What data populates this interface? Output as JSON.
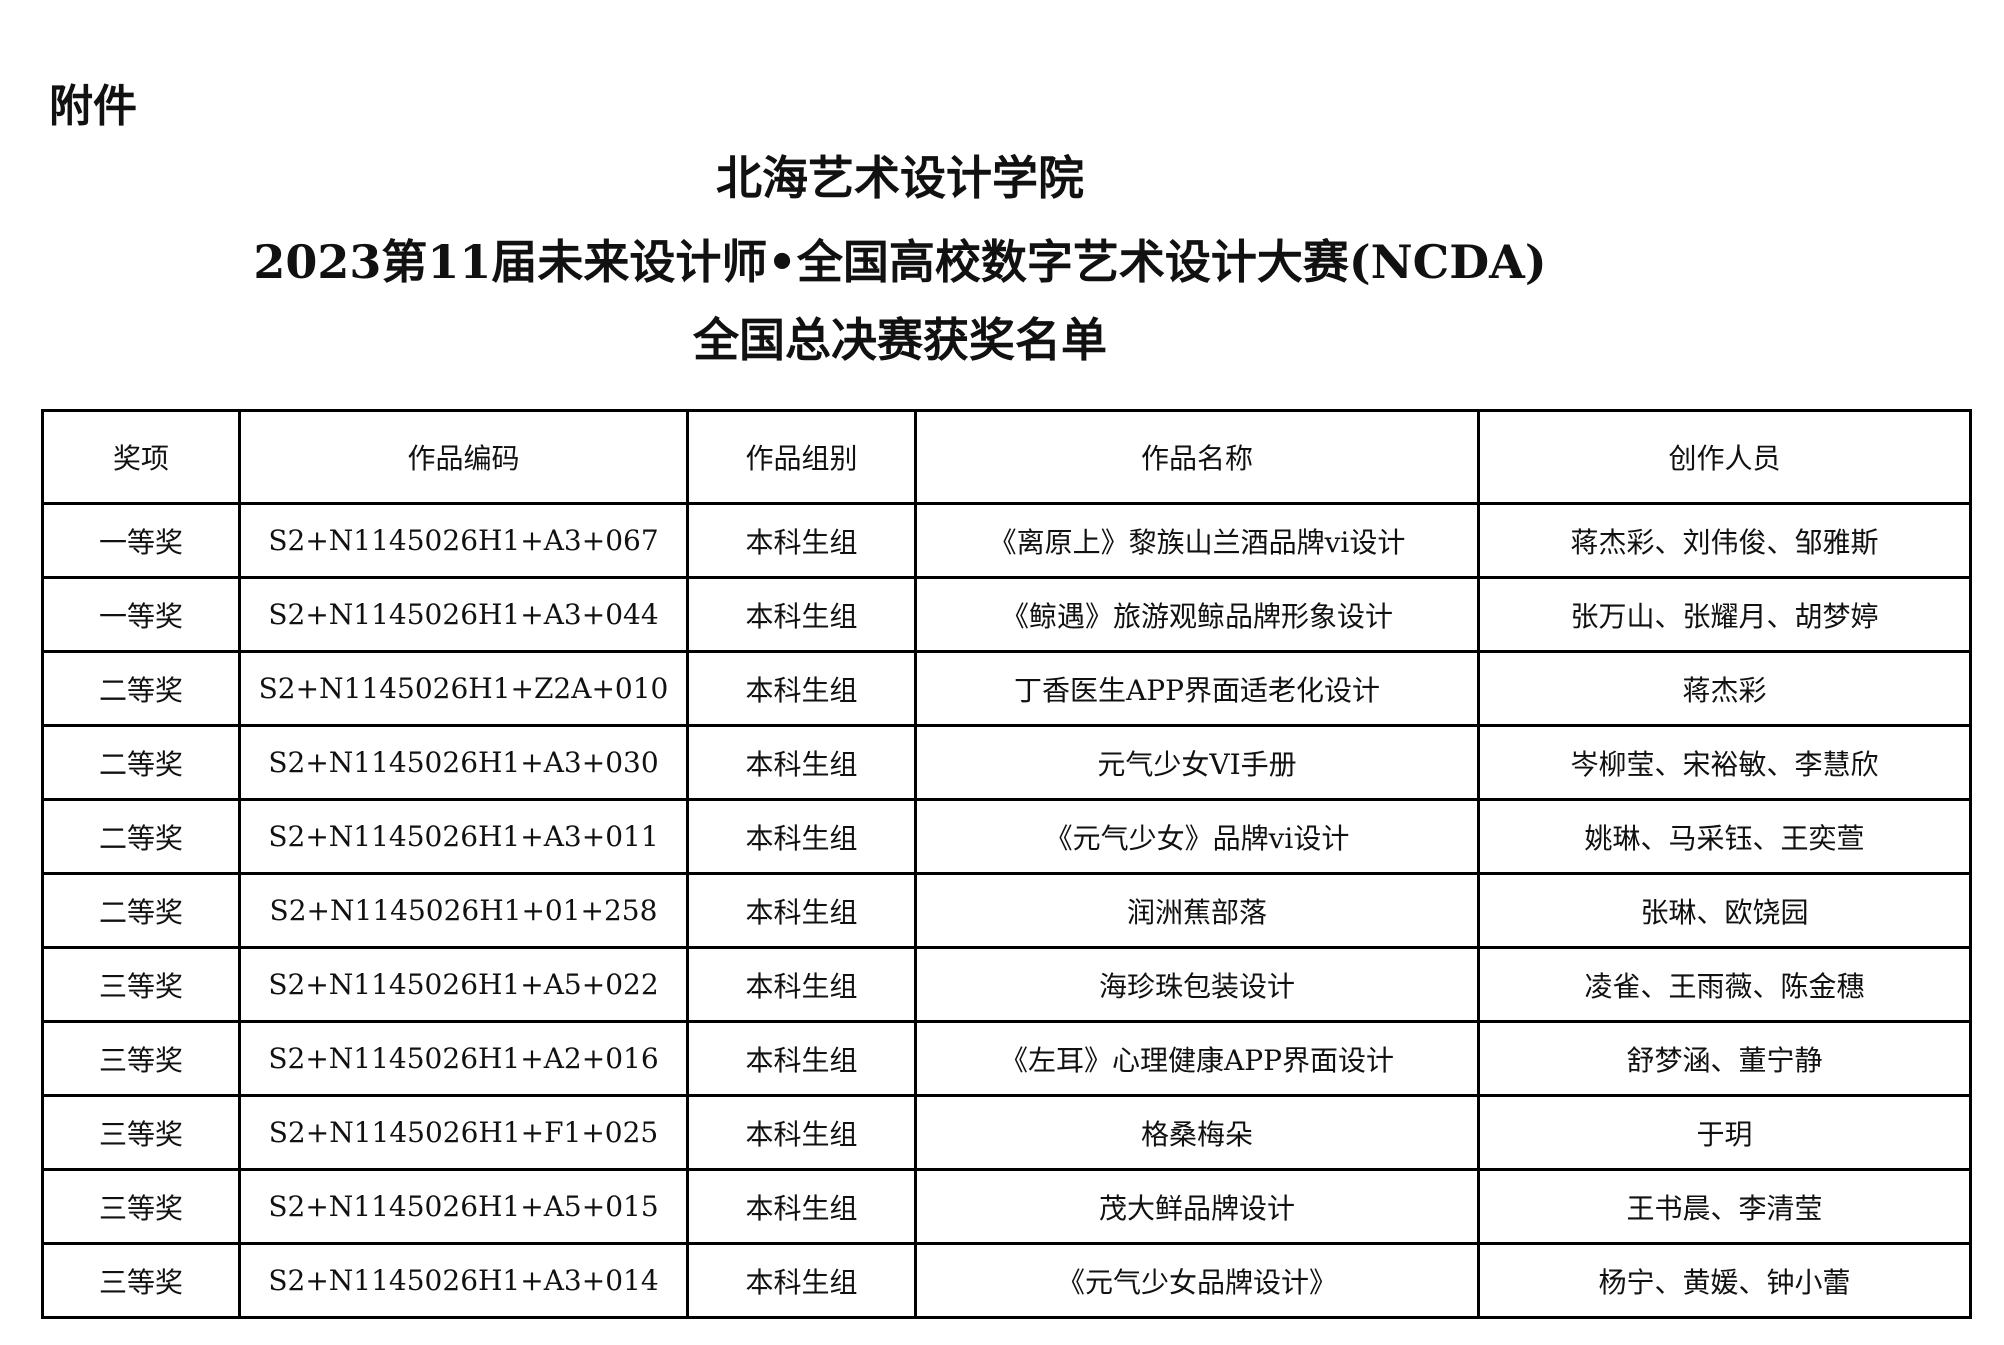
{
  "attachment_label": "附件",
  "title": {
    "line1": "北海艺术设计学院",
    "line2": "2023第11届未来设计师•全国高校数字艺术设计大赛(NCDA)",
    "line3": "全国总决赛获奖名单"
  },
  "table": {
    "headers": [
      "奖项",
      "作品编码",
      "作品组别",
      "作品名称",
      "创作人员"
    ],
    "rows": [
      [
        "一等奖",
        "S2+N1145026H1+A3+067",
        "本科生组",
        "《离原上》黎族山兰酒品牌vi设计",
        "蒋杰彩、刘伟俊、邹雅斯"
      ],
      [
        "一等奖",
        "S2+N1145026H1+A3+044",
        "本科生组",
        "《鲸遇》旅游观鲸品牌形象设计",
        "张万山、张耀月、胡梦婷"
      ],
      [
        "二等奖",
        "S2+N1145026H1+Z2A+010",
        "本科生组",
        "丁香医生APP界面适老化设计",
        "蒋杰彩"
      ],
      [
        "二等奖",
        "S2+N1145026H1+A3+030",
        "本科生组",
        "元气少女VI手册",
        "岑柳莹、宋裕敏、李慧欣"
      ],
      [
        "二等奖",
        "S2+N1145026H1+A3+011",
        "本科生组",
        "《元气少女》品牌vi设计",
        "姚琳、马采钰、王奕萱"
      ],
      [
        "二等奖",
        "S2+N1145026H1+01+258",
        "本科生组",
        "润洲蕉部落",
        "张琳、欧饶园"
      ],
      [
        "三等奖",
        "S2+N1145026H1+A5+022",
        "本科生组",
        "海珍珠包装设计",
        "凌雀、王雨薇、陈金穗"
      ],
      [
        "三等奖",
        "S2+N1145026H1+A2+016",
        "本科生组",
        "《左耳》心理健康APP界面设计",
        "舒梦涵、董宁静"
      ],
      [
        "三等奖",
        "S2+N1145026H1+F1+025",
        "本科生组",
        "格桑梅朵",
        "于玥"
      ],
      [
        "三等奖",
        "S2+N1145026H1+A5+015",
        "本科生组",
        "茂大鲜品牌设计",
        "王书晨、李清莹"
      ],
      [
        "三等奖",
        "S2+N1145026H1+A3+014",
        "本科生组",
        "《元气少女品牌设计》",
        "杨宁、黄媛、钟小蕾"
      ]
    ]
  }
}
